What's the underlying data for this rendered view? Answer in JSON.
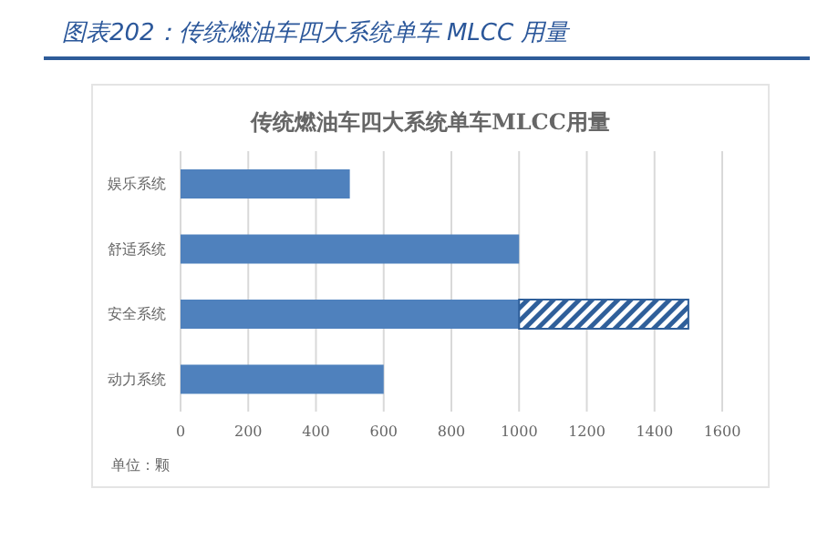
{
  "chart_data": {
    "type": "bar",
    "orientation": "horizontal",
    "stacked": true,
    "title": "图表202：传统燃油车四大系统单车 MLCC 用量",
    "subtitle": "传统燃油车四大系统单车MLCC用量",
    "categories": [
      "娱乐系统",
      "舒适系统",
      "安全系统",
      "动力系统"
    ],
    "series": [
      {
        "color": "#4f81bd",
        "values": [
          500,
          1000,
          1000,
          600
        ]
      },
      {
        "color": "#2f5f9a",
        "values": [
          null,
          null,
          500,
          null
        ]
      }
    ],
    "xlim": [
      0,
      1600
    ],
    "xticks": [
      0,
      200,
      400,
      600,
      800,
      1000,
      1200,
      1400,
      1600
    ],
    "grid": "x",
    "annotations": [
      "单位：颗"
    ]
  }
}
